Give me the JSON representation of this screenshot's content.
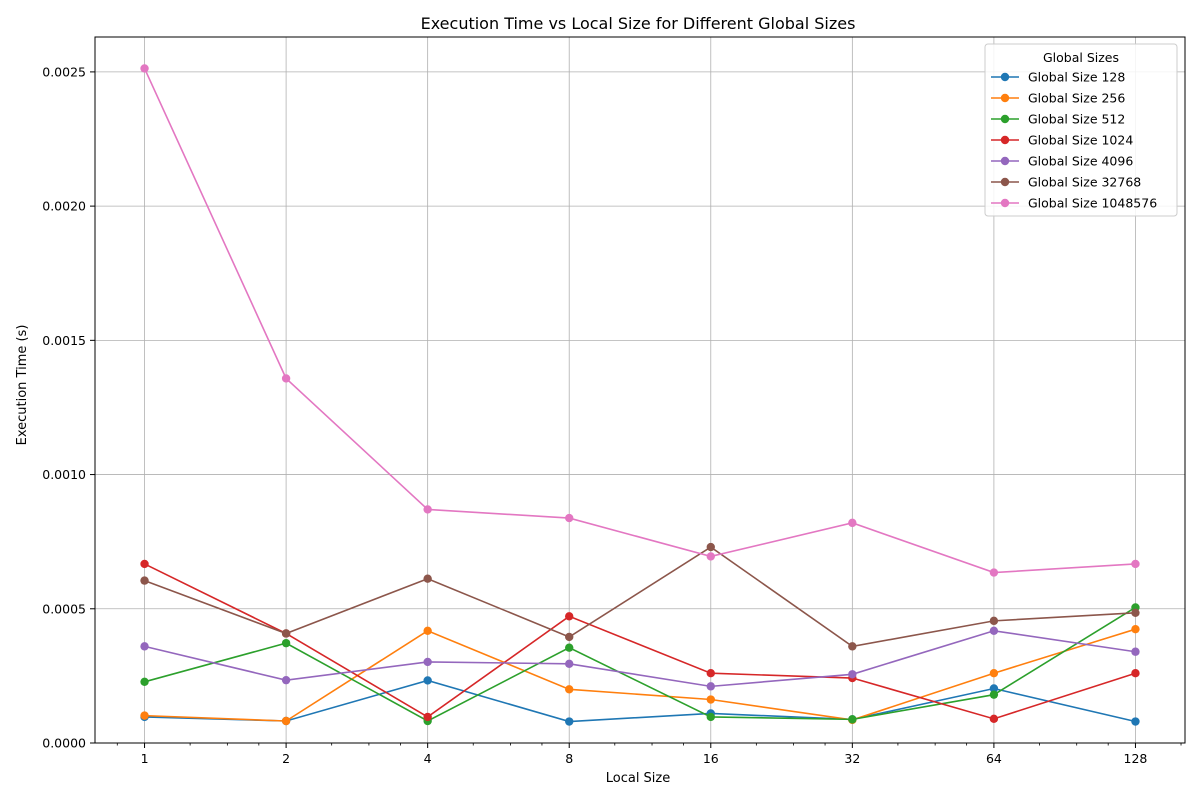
{
  "chart_data": {
    "type": "line",
    "title": "Execution Time vs Local Size for Different Global Sizes",
    "xlabel": "Local Size",
    "ylabel": "Execution Time (s)",
    "xscale": "log2",
    "x": [
      1,
      2,
      4,
      8,
      16,
      32,
      64,
      128
    ],
    "x_tick_labels": [
      "1",
      "2",
      "4",
      "8",
      "16",
      "32",
      "64",
      "128"
    ],
    "ylim": [
      0,
      0.00263
    ],
    "y_ticks": [
      0.0,
      0.0005,
      0.001,
      0.0015,
      0.002,
      0.0025
    ],
    "y_tick_labels": [
      "0.0000",
      "0.0005",
      "0.0010",
      "0.0015",
      "0.0020",
      "0.0025"
    ],
    "grid": true,
    "legend": {
      "title": "Global Sizes",
      "placement": "top-right"
    },
    "series": [
      {
        "name": "Global Size 128",
        "color": "#1f77b4",
        "values": [
          9.7e-05,
          8.2e-05,
          0.000233,
          8e-05,
          0.00011,
          8.8e-05,
          0.000203,
          8e-05
        ]
      },
      {
        "name": "Global Size 256",
        "color": "#ff7f0e",
        "values": [
          0.000102,
          8.2e-05,
          0.000418,
          0.0002,
          0.000162,
          8.6e-05,
          0.00026,
          0.000424
        ]
      },
      {
        "name": "Global Size 512",
        "color": "#2ca02c",
        "values": [
          0.000228,
          0.000372,
          8.2e-05,
          0.000355,
          9.7e-05,
          8.8e-05,
          0.00018,
          0.000505
        ]
      },
      {
        "name": "Global Size 1024",
        "color": "#d62728",
        "values": [
          0.000667,
          0.000408,
          9.7e-05,
          0.000472,
          0.00026,
          0.000242,
          9e-05,
          0.00026
        ]
      },
      {
        "name": "Global Size 4096",
        "color": "#9467bd",
        "values": [
          0.00036,
          0.000234,
          0.000302,
          0.000295,
          0.000211,
          0.000256,
          0.000418,
          0.00034
        ]
      },
      {
        "name": "Global Size 32768",
        "color": "#8c564b",
        "values": [
          0.000605,
          0.000408,
          0.000612,
          0.000395,
          0.00073,
          0.00036,
          0.000455,
          0.000485
        ]
      },
      {
        "name": "Global Size 1048576",
        "color": "#e377c2",
        "values": [
          0.002513,
          0.001358,
          0.00087,
          0.000838,
          0.000695,
          0.00082,
          0.000635,
          0.000667
        ]
      }
    ]
  }
}
